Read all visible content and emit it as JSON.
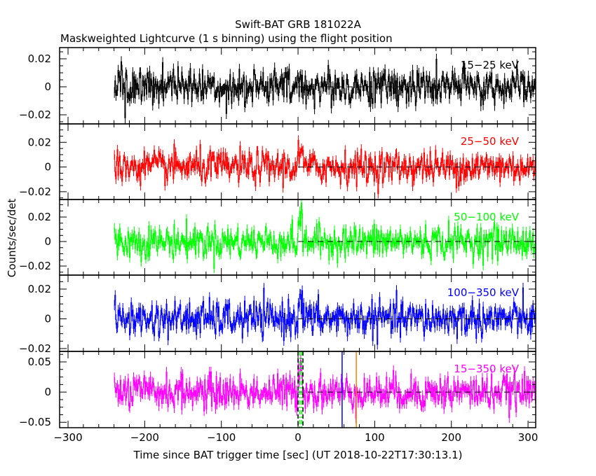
{
  "chart_data": {
    "type": "line",
    "title": "Swift-BAT GRB 181022A",
    "subtitle": "Maskweighted Lightcurve (1 s binning) using the flight position",
    "xlabel": "Time since BAT trigger time [sec] (UT 2018-10-22T17:30:13.1)",
    "ylabel": "Counts/sec/det",
    "xlim": [
      -311,
      310
    ],
    "x_ticks": [
      -300,
      -200,
      -100,
      0,
      100,
      200,
      300
    ],
    "x_tick_labels": [
      "−300",
      "−200",
      "−100",
      "0",
      "100",
      "200",
      "300"
    ],
    "data_range": [
      -240,
      310
    ],
    "bin_seconds": 1,
    "panels": [
      {
        "name": "15-25 keV",
        "label": "15−25 keV",
        "color": "#000000",
        "ylim": [
          -0.0265,
          0.028
        ],
        "yticks": [
          -0.02,
          0,
          0.02
        ],
        "ytick_labels": [
          "−0.02",
          "0",
          "0.02"
        ],
        "noise_sigma": 0.0065,
        "peak": 0.0
      },
      {
        "name": "25-50 keV",
        "label": "25−50 keV",
        "color": "#ff0000",
        "ylim": [
          -0.0263,
          0.0349
        ],
        "yticks": [
          -0.02,
          0,
          0.02
        ],
        "ytick_labels": [
          "−0.02",
          "0",
          "0.02"
        ],
        "noise_sigma": 0.0065,
        "peak": 0.012
      },
      {
        "name": "50-100 keV",
        "label": "50−100 keV",
        "color": "#00ff00",
        "ylim": [
          -0.0274,
          0.0343
        ],
        "yticks": [
          -0.02,
          0,
          0.02
        ],
        "ytick_labels": [
          "−0.02",
          "0",
          "0.02"
        ],
        "noise_sigma": 0.0065,
        "peak": 0.016
      },
      {
        "name": "100-350 keV",
        "label": "100−350 keV",
        "color": "#0000ff",
        "ylim": [
          -0.0219,
          0.0294
        ],
        "yticks": [
          -0.02,
          0,
          0.02
        ],
        "ytick_labels": [
          "−0.02",
          "0",
          "0.02"
        ],
        "noise_sigma": 0.0058,
        "peak": 0.013
      },
      {
        "name": "15-350 keV",
        "label": "15−350 keV",
        "color": "#ff00ff",
        "ylim": [
          -0.059,
          0.0674
        ],
        "yticks": [
          -0.05,
          0,
          0.05
        ],
        "ytick_labels": [
          "−0.05",
          "0",
          "0.05"
        ],
        "noise_sigma": 0.014,
        "peak": 0.04
      }
    ],
    "markers": [
      {
        "name": "t-start",
        "x": 0,
        "color": "#000000",
        "style": "dashed"
      },
      {
        "name": "t-end",
        "x": 6.4,
        "color": "#000000",
        "style": "dashed"
      },
      {
        "name": "t90-start",
        "x": 2.5,
        "color": "#00ff00",
        "style": "dashdot"
      },
      {
        "name": "t90-end",
        "x": 4.8,
        "color": "#00ff00",
        "style": "dashdot"
      },
      {
        "name": "blue-marker",
        "x": 57.5,
        "color": "#0000ff",
        "style": "solid"
      },
      {
        "name": "orange-marker",
        "x": 76,
        "color": "#ff8000",
        "style": "solid"
      }
    ]
  }
}
